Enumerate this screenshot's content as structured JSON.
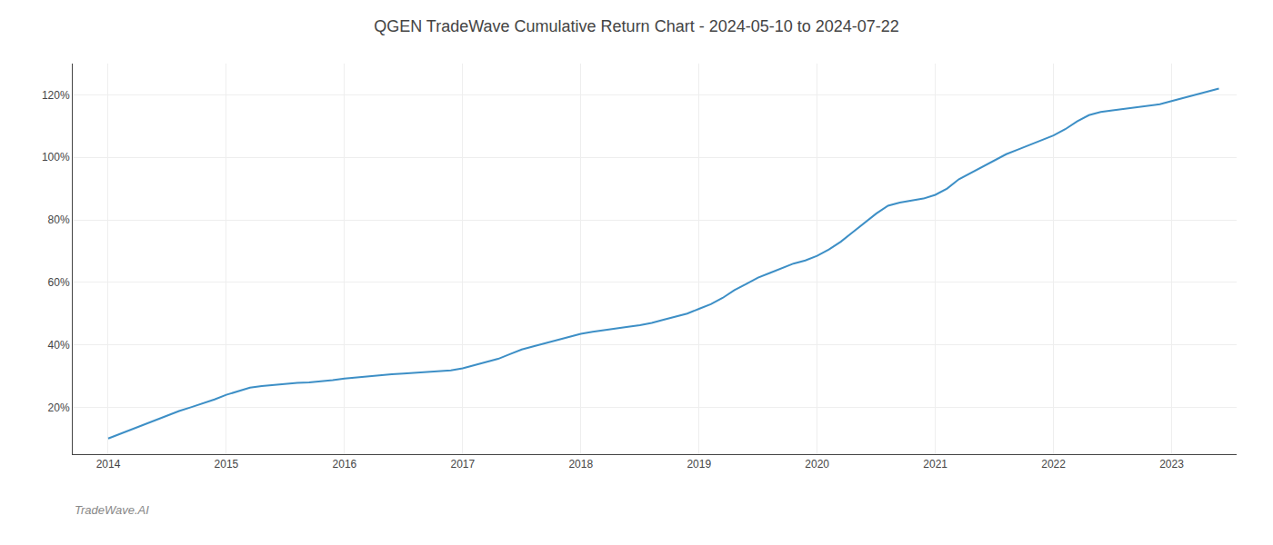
{
  "chart_data": {
    "type": "line",
    "title": "QGEN TradeWave Cumulative Return Chart - 2024-05-10 to 2024-07-22",
    "annotations": [
      "TradeWave.AI"
    ],
    "color": "#3d8fc6",
    "grid": true,
    "x": [
      2014.0,
      2014.1,
      2014.2,
      2014.3,
      2014.4,
      2014.5,
      2014.6,
      2014.7,
      2014.8,
      2014.9,
      2015.0,
      2015.1,
      2015.2,
      2015.3,
      2015.4,
      2015.5,
      2015.6,
      2015.7,
      2015.8,
      2015.9,
      2016.0,
      2016.1,
      2016.2,
      2016.3,
      2016.4,
      2016.5,
      2016.6,
      2016.7,
      2016.8,
      2016.9,
      2017.0,
      2017.1,
      2017.2,
      2017.3,
      2017.4,
      2017.5,
      2017.6,
      2017.7,
      2017.8,
      2017.9,
      2018.0,
      2018.1,
      2018.2,
      2018.3,
      2018.4,
      2018.5,
      2018.6,
      2018.7,
      2018.8,
      2018.9,
      2019.0,
      2019.1,
      2019.2,
      2019.3,
      2019.4,
      2019.5,
      2019.6,
      2019.7,
      2019.8,
      2019.9,
      2020.0,
      2020.1,
      2020.2,
      2020.3,
      2020.4,
      2020.5,
      2020.6,
      2020.7,
      2020.8,
      2020.9,
      2021.0,
      2021.1,
      2021.2,
      2021.3,
      2021.4,
      2021.5,
      2021.6,
      2021.7,
      2021.8,
      2021.9,
      2022.0,
      2022.1,
      2022.2,
      2022.3,
      2022.4,
      2022.5,
      2022.6,
      2022.7,
      2022.8,
      2022.9,
      2023.0,
      2023.1,
      2023.2,
      2023.3,
      2023.4
    ],
    "values": [
      10.0,
      11.5,
      13.0,
      14.5,
      16.0,
      17.5,
      18.8,
      20.0,
      21.2,
      22.5,
      24.0,
      25.2,
      26.3,
      26.8,
      27.2,
      27.5,
      27.8,
      28.0,
      28.3,
      28.7,
      29.2,
      29.6,
      30.0,
      30.3,
      30.6,
      30.8,
      31.0,
      31.2,
      31.5,
      31.8,
      32.5,
      33.5,
      34.5,
      35.5,
      37.0,
      38.5,
      39.5,
      40.5,
      41.5,
      42.5,
      43.5,
      44.2,
      44.8,
      45.3,
      45.8,
      46.3,
      47.0,
      48.0,
      49.0,
      50.0,
      51.5,
      53.0,
      55.0,
      57.5,
      59.5,
      61.5,
      63.0,
      64.5,
      66.0,
      67.0,
      68.5,
      70.5,
      73.0,
      76.0,
      79.0,
      82.0,
      84.5,
      85.5,
      86.2,
      86.8,
      88.0,
      90.0,
      93.0,
      95.0,
      97.0,
      99.0,
      101.0,
      102.5,
      104.0,
      105.5,
      107.0,
      109.0,
      111.5,
      113.5,
      114.5,
      115.0,
      115.5,
      116.0,
      116.5,
      117.0,
      118.0,
      119.0,
      120.0,
      121.0,
      122.0
    ],
    "xlim": [
      2013.7,
      2023.55
    ],
    "ylim": [
      5,
      130
    ],
    "xticks": [
      2014,
      2015,
      2016,
      2017,
      2018,
      2019,
      2020,
      2021,
      2022,
      2023
    ],
    "yticks": [
      {
        "value": 20,
        "label": "20%"
      },
      {
        "value": 40,
        "label": "40%"
      },
      {
        "value": 60,
        "label": "60%"
      },
      {
        "value": 80,
        "label": "80%"
      },
      {
        "value": 100,
        "label": "100%"
      },
      {
        "value": 120,
        "label": "120%"
      }
    ]
  }
}
